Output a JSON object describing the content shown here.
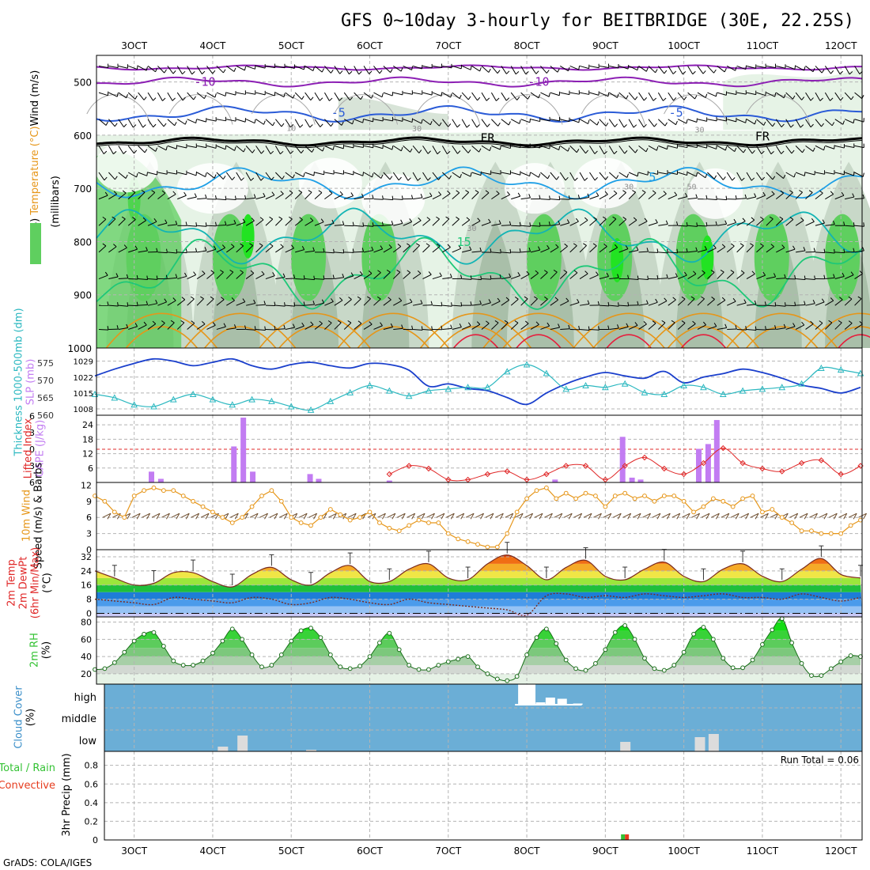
{
  "title": "GFS 0~10day 3-hourly for BEITBRIDGE (30E, 22.25S)",
  "footer": "GrADS: COLA/IGES",
  "run_total": "Run Total = 0.06",
  "colors": {
    "grid": "#b4b4b4",
    "rh_light": "#e6f3e6",
    "rh_mid": "#c8d8c8",
    "rh_dark": "#a9bfa9",
    "rh_green": "#5fcf5f",
    "rh_bright": "#22e322",
    "temp_purple": "#8c1fb4",
    "temp_blue": "#2a5bd7",
    "temp_cyan": "#1e9fe6",
    "temp_teal": "#12b4b4",
    "temp_green": "#1ec878",
    "temp_orange": "#e69619",
    "temp_red": "#e61e3c",
    "slp": "#1a3fcc",
    "thickness": "#2cb8c0",
    "cape": "#c27cf2",
    "lifted": "#e02828",
    "wind_speed": "#e69619",
    "barb": "#6b4a2a",
    "cloud_bg": "#6baed6",
    "cloud_bar": "#dcdcdc",
    "rh2m_fill": "#2ec82e",
    "precip_green": "#34c234",
    "precip_red": "#e63c1e"
  },
  "chart_data": [
    {
      "panel": "upper-air",
      "type": "heatmap",
      "ylabel": "(millibars)",
      "ylabel_legend": [
        "Wind (m/s)",
        "Temperature (°C)",
        "RH (%)"
      ],
      "x_tick_labels": [
        "3OCT",
        "4OCT",
        "5OCT",
        "6OCT",
        "7OCT",
        "8OCT",
        "9OCT",
        "10OCT",
        "11OCT",
        "12OCT"
      ],
      "x_day_index": [
        3,
        4,
        5,
        6,
        7,
        8,
        9,
        10,
        11,
        12
      ],
      "xlim": [
        2.52,
        12.27
      ],
      "y_ticks": [
        500,
        600,
        700,
        800,
        900,
        1000
      ],
      "ylim": [
        450,
        1000
      ],
      "contour_labels": [
        "-10",
        "-10",
        "-5",
        "-5",
        "FR",
        "FR",
        "5",
        "15",
        "10",
        "30",
        "30",
        "30",
        "50",
        "30"
      ]
    },
    {
      "panel": "slp-thickness",
      "type": "line",
      "ylabel": "SLP (mb)",
      "ylabel2": "Thickness 1000-500mb (dm)",
      "left_ticks": [
        "575",
        "570",
        "565",
        "560"
      ],
      "right_ticks": [
        "1029",
        "1022",
        "1015",
        "1008"
      ],
      "slp_ylim": [
        1008,
        1032
      ],
      "series": [
        {
          "name": "SLP (mb)",
          "x": [
            2.5,
            2.75,
            3.0,
            3.25,
            3.5,
            3.75,
            4.0,
            4.25,
            4.5,
            4.75,
            5.0,
            5.25,
            5.5,
            5.75,
            6.0,
            6.25,
            6.5,
            6.75,
            7.0,
            7.25,
            7.5,
            7.75,
            8.0,
            8.25,
            8.5,
            8.75,
            9.0,
            9.25,
            9.5,
            9.75,
            10.0,
            10.25,
            10.5,
            10.75,
            11.0,
            11.25,
            11.5,
            11.75,
            12.0,
            12.25
          ],
          "values": [
            1022.5,
            1025.5,
            1028,
            1030,
            1029,
            1027,
            1028.5,
            1030,
            1027,
            1025.5,
            1027.5,
            1028.5,
            1027,
            1026,
            1028,
            1027.5,
            1025,
            1018,
            1019,
            1017,
            1016,
            1013,
            1010,
            1015,
            1019,
            1022,
            1024,
            1022.5,
            1021.5,
            1024.5,
            1019.5,
            1022,
            1023.5,
            1025.5,
            1024,
            1021.5,
            1018.5,
            1017,
            1015,
            1017.5
          ]
        },
        {
          "name": "Thickness (dm)",
          "x": [
            2.5,
            2.75,
            3.0,
            3.25,
            3.5,
            3.75,
            4.0,
            4.25,
            4.5,
            4.75,
            5.0,
            5.25,
            5.5,
            5.75,
            6.0,
            6.25,
            6.5,
            6.75,
            7.0,
            7.25,
            7.5,
            7.75,
            8.0,
            8.25,
            8.5,
            8.75,
            9.0,
            9.25,
            9.5,
            9.75,
            10.0,
            10.25,
            10.5,
            10.75,
            11.0,
            11.25,
            11.5,
            11.75,
            12.0,
            12.25
          ],
          "values": [
            566,
            565,
            563,
            562.5,
            564.5,
            566,
            564.5,
            563,
            564.5,
            564,
            562.5,
            561.5,
            564,
            566.5,
            568.5,
            567,
            565.5,
            567,
            567.5,
            568,
            568,
            572.5,
            574.5,
            572,
            567.5,
            568.5,
            568,
            569,
            566.5,
            566,
            568.5,
            568,
            566,
            567,
            567.5,
            568,
            569,
            573.5,
            573,
            572
          ]
        }
      ]
    },
    {
      "panel": "cape-lifted",
      "type": "bar",
      "ylabel": "CAPE (J/kg)",
      "ylabel2": "Lifted Index",
      "left_ticks": [
        "6",
        "3",
        "0",
        "3",
        "6"
      ],
      "right_ticks": [
        "24",
        "18",
        "12",
        "6"
      ],
      "cape_ylim": [
        0,
        28
      ],
      "series": [
        {
          "name": "CAPE (J/kg)",
          "x": [
            3.22,
            3.34,
            4.27,
            4.39,
            4.51,
            5.24,
            5.35,
            6.25,
            8.36,
            9.22,
            9.34,
            9.45,
            10.19,
            10.31,
            10.42
          ],
          "values": [
            4.5,
            1.5,
            15,
            27,
            4.5,
            3.5,
            1.5,
            0.8,
            1.2,
            19,
            2,
            1.2,
            14,
            16,
            26
          ]
        },
        {
          "name": "Lifted Index",
          "x": [
            6.25,
            6.5,
            6.75,
            7.0,
            7.25,
            7.5,
            7.75,
            8.0,
            8.25,
            8.5,
            8.75,
            9.0,
            9.25,
            9.5,
            9.75,
            10.0,
            10.25,
            10.5,
            10.75,
            11.0,
            11.25,
            11.5,
            11.75,
            12.0,
            12.25
          ],
          "values": [
            -4.5,
            -3,
            -3.5,
            -5.5,
            -5.5,
            -4.5,
            -4,
            -5.5,
            -4.5,
            -3,
            -3,
            -5.5,
            -3,
            -1.5,
            -3.5,
            -4.5,
            -2.5,
            0.2,
            -2.5,
            -3.5,
            -4,
            -2.5,
            -2,
            -4.5,
            -3
          ]
        }
      ]
    },
    {
      "panel": "wind-10m",
      "type": "line",
      "ylabel": "10m Wind",
      "ylabel2": "Speed (m/s) & Barbs",
      "y_ticks": [
        0,
        3,
        6,
        9,
        12
      ],
      "ylim": [
        0,
        12.5
      ],
      "series": [
        {
          "name": "10m Wind Speed (m/s)",
          "x": [
            2.5,
            2.625,
            2.75,
            2.875,
            3.0,
            3.125,
            3.25,
            3.375,
            3.5,
            3.625,
            3.75,
            3.875,
            4.0,
            4.125,
            4.25,
            4.375,
            4.5,
            4.625,
            4.75,
            4.875,
            5.0,
            5.125,
            5.25,
            5.375,
            5.5,
            5.625,
            5.75,
            5.875,
            6.0,
            6.125,
            6.25,
            6.375,
            6.5,
            6.625,
            6.75,
            6.875,
            7.0,
            7.125,
            7.25,
            7.375,
            7.5,
            7.625,
            7.75,
            7.875,
            8.0,
            8.125,
            8.25,
            8.375,
            8.5,
            8.625,
            8.75,
            8.875,
            9.0,
            9.125,
            9.25,
            9.375,
            9.5,
            9.625,
            9.75,
            9.875,
            10.0,
            10.125,
            10.25,
            10.375,
            10.5,
            10.625,
            10.75,
            10.875,
            11.0,
            11.125,
            11.25,
            11.375,
            11.5,
            11.625,
            11.75,
            11.875,
            12.0,
            12.125,
            12.25
          ],
          "values": [
            10,
            9,
            7,
            6,
            10,
            11,
            11.5,
            11,
            11,
            10,
            9,
            8,
            7,
            6,
            5,
            6,
            8,
            10,
            11,
            9,
            6,
            5,
            4.5,
            6,
            7.5,
            6.5,
            5.5,
            6,
            7,
            5,
            4,
            3.5,
            4.5,
            5.5,
            5,
            5,
            3,
            2,
            1.5,
            1,
            0.5,
            0.5,
            3,
            7,
            9.5,
            11,
            11.5,
            9.5,
            10.5,
            9.5,
            10.5,
            10,
            8,
            10,
            10.5,
            9.5,
            10,
            9,
            10,
            10,
            9,
            7,
            8,
            9.5,
            9,
            8,
            9.5,
            10,
            7,
            7.5,
            6,
            5,
            3.5,
            3.5,
            3,
            3,
            3,
            4.5,
            5.5
          ]
        }
      ]
    },
    {
      "panel": "temp-2m",
      "type": "area",
      "ylabel": "2m Temp",
      "ylabel2": "2m DewPt",
      "ylabel3": "(6hr Min/Max)",
      "ylabel4": "(°C)",
      "y_ticks": [
        0,
        8,
        16,
        24,
        32
      ],
      "ylim": [
        -2,
        36
      ],
      "series": [
        {
          "name": "2m Temp (°C)",
          "x": [
            2.5,
            2.75,
            3.0,
            3.25,
            3.5,
            3.75,
            4.0,
            4.25,
            4.5,
            4.75,
            5.0,
            5.25,
            5.5,
            5.75,
            6.0,
            6.25,
            6.5,
            6.75,
            7.0,
            7.25,
            7.5,
            7.75,
            8.0,
            8.25,
            8.5,
            8.75,
            9.0,
            9.25,
            9.5,
            9.75,
            10.0,
            10.25,
            10.5,
            10.75,
            11.0,
            11.25,
            11.5,
            11.75,
            12.0,
            12.25
          ],
          "values": [
            24,
            20,
            16,
            17,
            23,
            23,
            18,
            15,
            22,
            26,
            19,
            16,
            23,
            27,
            18,
            18,
            25,
            28,
            20,
            19,
            28,
            33,
            27,
            19,
            26,
            30,
            21,
            19,
            25,
            29,
            21,
            18,
            25,
            28,
            21,
            18,
            25,
            31,
            22,
            20
          ]
        },
        {
          "name": "2m DewPt (°C)",
          "x": [
            2.5,
            2.75,
            3.0,
            3.25,
            3.5,
            3.75,
            4.0,
            4.25,
            4.5,
            4.75,
            5.0,
            5.25,
            5.5,
            5.75,
            6.0,
            6.25,
            6.5,
            6.75,
            7.0,
            7.25,
            7.5,
            7.75,
            8.0,
            8.25,
            8.5,
            8.75,
            9.0,
            9.25,
            9.5,
            9.75,
            10.0,
            10.25,
            10.5,
            10.75,
            11.0,
            11.25,
            11.5,
            11.75,
            12.0,
            12.25
          ],
          "values": [
            8,
            7,
            6,
            5,
            9,
            8,
            7,
            6,
            9,
            8,
            5,
            6,
            9,
            8,
            6,
            5,
            8,
            6,
            5,
            4,
            3,
            2,
            -1,
            10,
            11,
            9,
            10,
            9,
            11,
            10,
            9,
            10,
            11,
            9,
            9,
            8,
            11,
            9,
            7,
            9
          ]
        }
      ]
    },
    {
      "panel": "rh-2m",
      "type": "area",
      "ylabel": "2m RH",
      "ylabel2": "(%)",
      "y_ticks": [
        20,
        40,
        60,
        80
      ],
      "ylim": [
        8,
        86
      ],
      "series": [
        {
          "name": "2m RH (%)",
          "x": [
            2.5,
            2.625,
            2.75,
            2.875,
            3.0,
            3.125,
            3.25,
            3.375,
            3.5,
            3.625,
            3.75,
            3.875,
            4.0,
            4.125,
            4.25,
            4.375,
            4.5,
            4.625,
            4.75,
            4.875,
            5.0,
            5.125,
            5.25,
            5.375,
            5.5,
            5.625,
            5.75,
            5.875,
            6.0,
            6.125,
            6.25,
            6.375,
            6.5,
            6.625,
            6.75,
            6.875,
            7.0,
            7.125,
            7.25,
            7.375,
            7.5,
            7.625,
            7.75,
            7.875,
            8.0,
            8.125,
            8.25,
            8.375,
            8.5,
            8.625,
            8.75,
            8.875,
            9.0,
            9.125,
            9.25,
            9.375,
            9.5,
            9.625,
            9.75,
            9.875,
            10.0,
            10.125,
            10.25,
            10.375,
            10.5,
            10.625,
            10.75,
            10.875,
            11.0,
            11.125,
            11.25,
            11.375,
            11.5,
            11.625,
            11.75,
            11.875,
            12.0,
            12.125,
            12.25
          ],
          "values": [
            25,
            26,
            33,
            45,
            58,
            66,
            68,
            52,
            35,
            30,
            30,
            35,
            44,
            58,
            72,
            60,
            42,
            28,
            30,
            42,
            58,
            70,
            73,
            62,
            42,
            28,
            26,
            29,
            40,
            56,
            67,
            48,
            30,
            25,
            25,
            30,
            34,
            37,
            40,
            28,
            20,
            14,
            12,
            17,
            42,
            62,
            72,
            55,
            36,
            26,
            24,
            32,
            48,
            68,
            76,
            60,
            38,
            26,
            24,
            30,
            45,
            66,
            74,
            60,
            38,
            27,
            27,
            36,
            54,
            71,
            84,
            56,
            32,
            18,
            18,
            26,
            34,
            41,
            40
          ]
        }
      ]
    },
    {
      "panel": "cloud-cover",
      "type": "bar",
      "ylabel": "Cloud Cover",
      "ylabel2": "(%)",
      "y_tick_labels": [
        "high",
        "middle",
        "low"
      ],
      "series": [
        {
          "name": "low",
          "x": [
            4.125,
            4.375,
            5.25,
            9.25,
            10.2,
            10.375
          ],
          "values": [
            6,
            20,
            2,
            12,
            18,
            22
          ]
        },
        {
          "name": "high",
          "x": [
            7.95,
            8.05,
            8.175,
            8.3,
            8.45,
            8.65
          ],
          "values": [
            100,
            100,
            10,
            30,
            25,
            5
          ]
        }
      ]
    },
    {
      "panel": "precip-3hr",
      "type": "bar",
      "ylabel": "3hr Precip (mm)",
      "legend": [
        "Total / Rain",
        "Convective"
      ],
      "y_ticks": [
        "0",
        "0.2",
        "0.4",
        "0.6",
        "0.8"
      ],
      "ylim": [
        0,
        0.95
      ],
      "series": [
        {
          "name": "Total / Rain",
          "x": [
            9.25
          ],
          "values": [
            0.06
          ]
        },
        {
          "name": "Convective",
          "x": [
            9.25
          ],
          "values": [
            0.06
          ]
        }
      ]
    }
  ]
}
